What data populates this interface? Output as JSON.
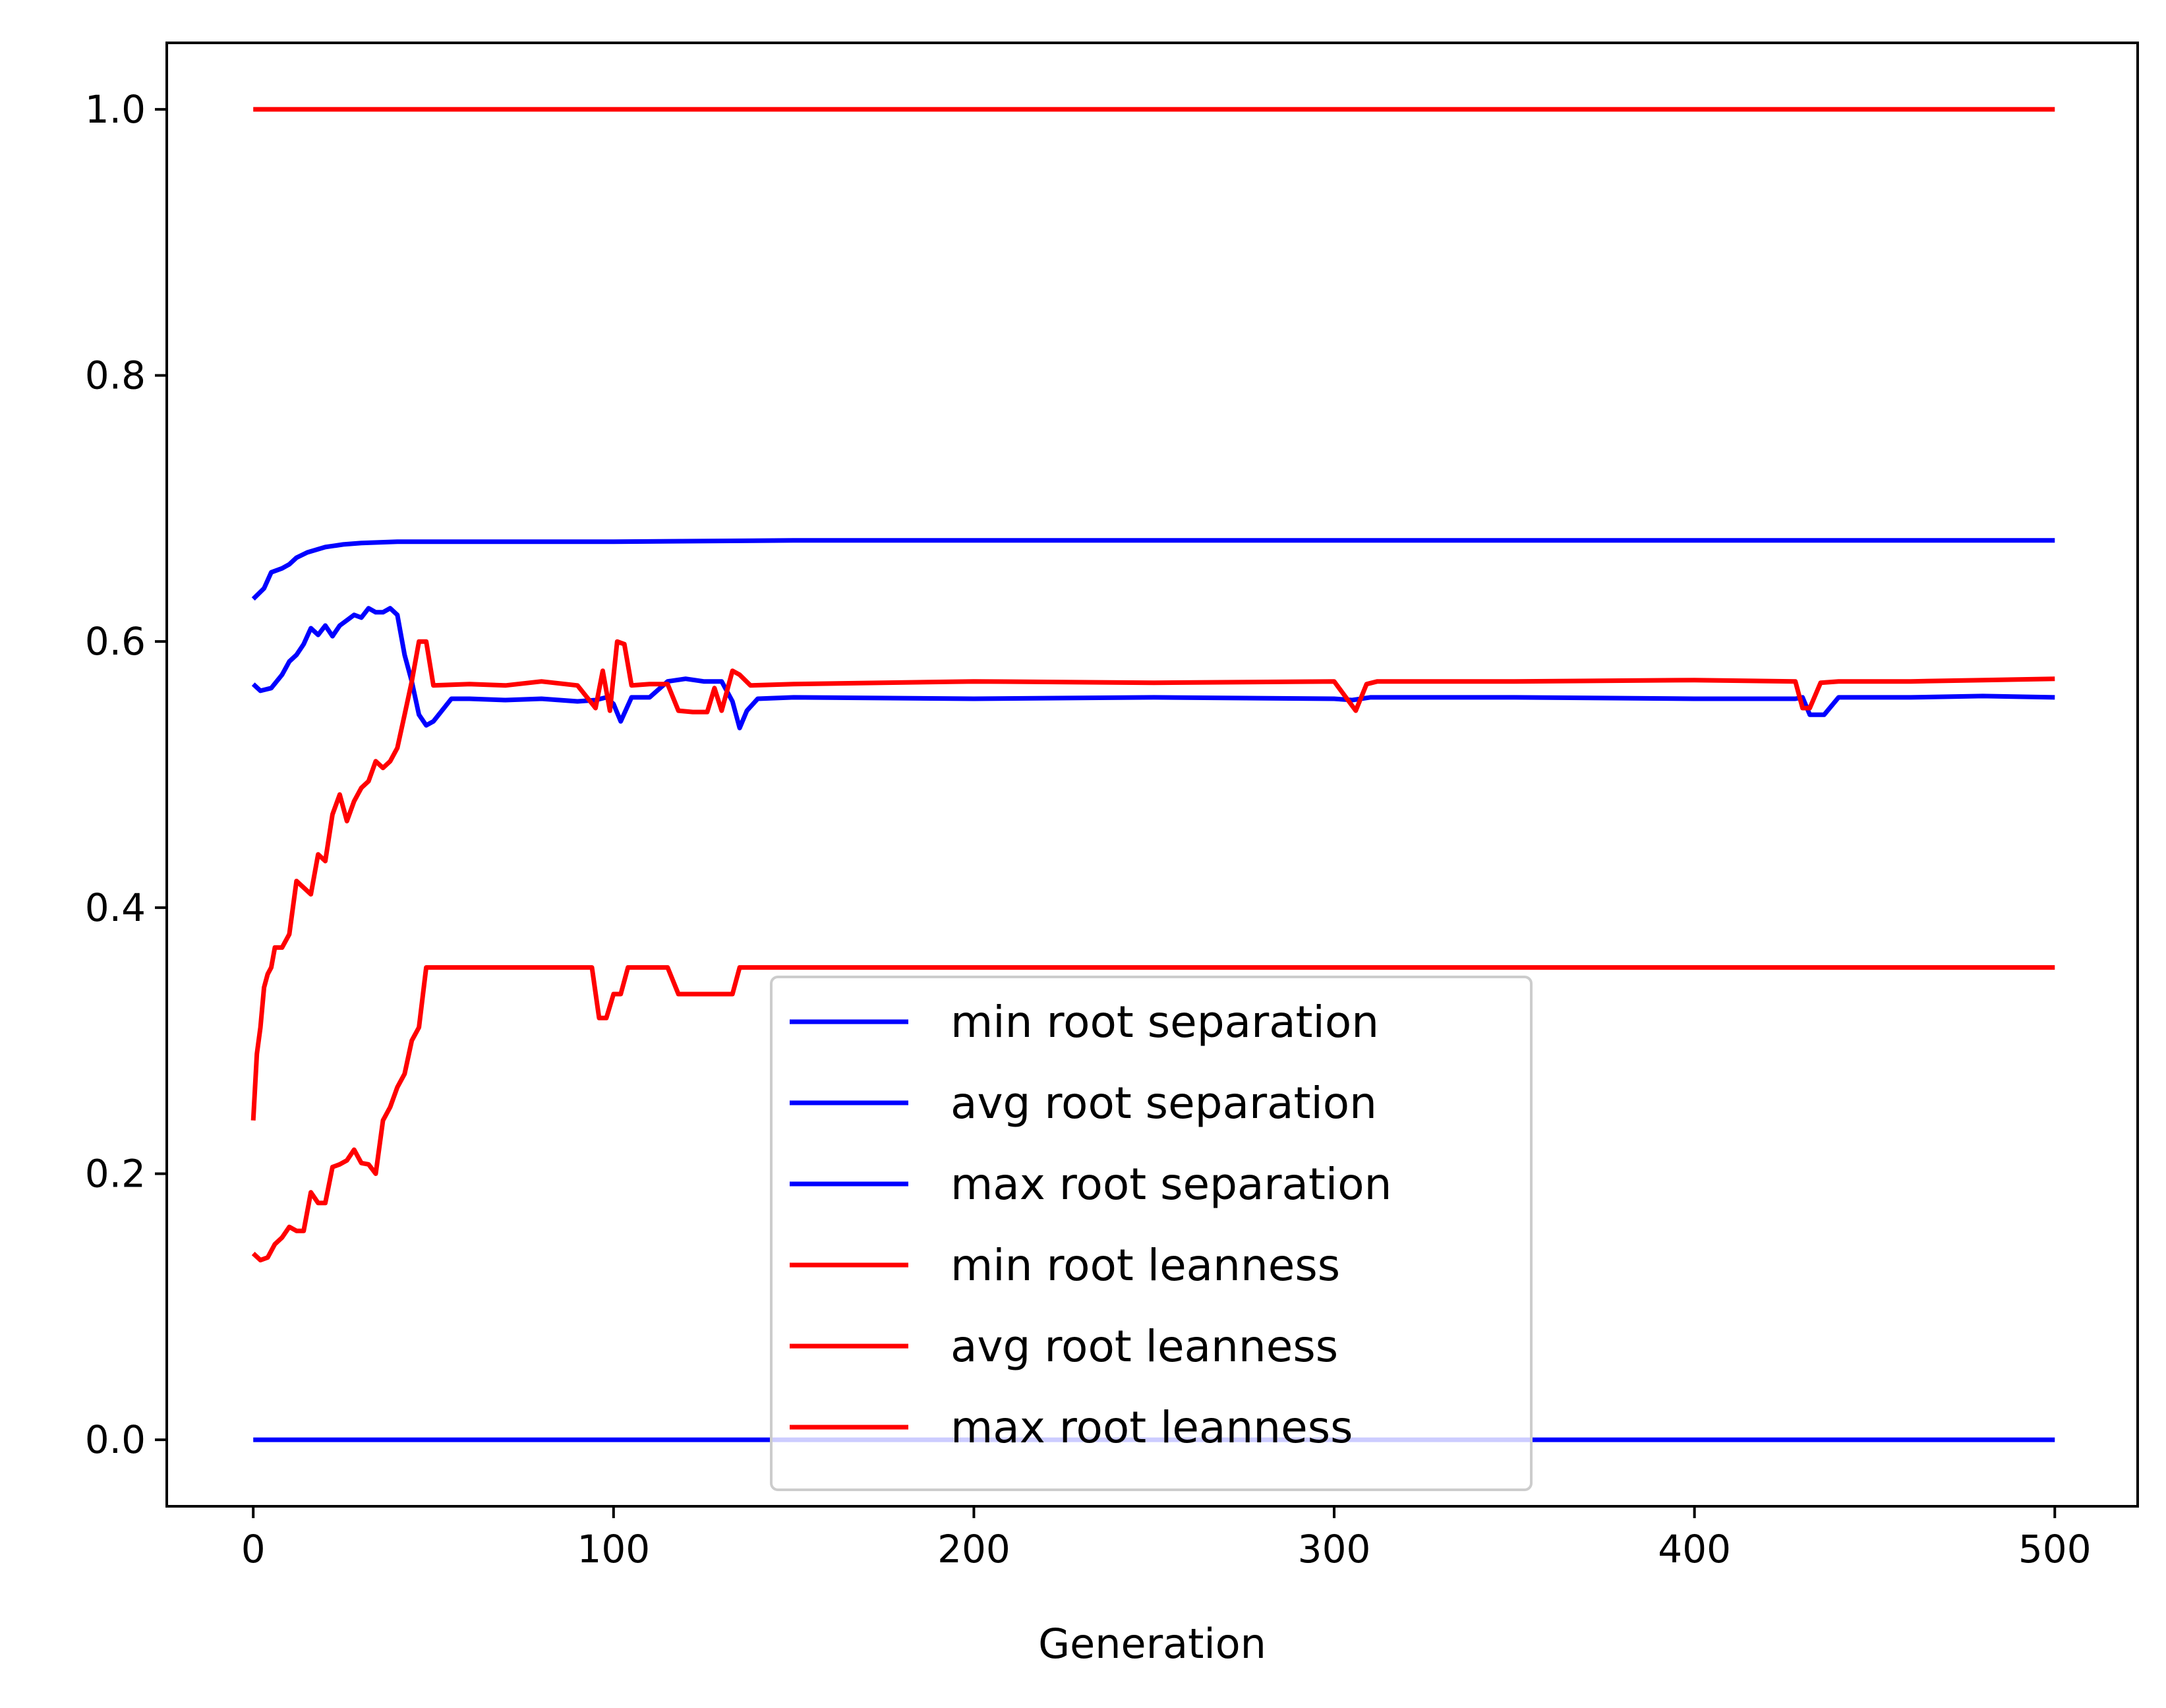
{
  "chart_data": {
    "type": "line",
    "title": "",
    "xlabel": "Generation",
    "ylabel": "",
    "xlim": [
      -24,
      523
    ],
    "ylim": [
      -0.05,
      1.05
    ],
    "xticks": [
      "0",
      "100",
      "200",
      "300",
      "400",
      "500"
    ],
    "yticks": [
      "0.0",
      "0.2",
      "0.4",
      "0.6",
      "0.8",
      "1.0"
    ],
    "grid": false,
    "legend_position": "lower-center",
    "series": [
      {
        "name": "min root separation",
        "color": "#0000ff",
        "x": [
          0,
          500
        ],
        "y": [
          0.0,
          0.0
        ]
      },
      {
        "name": "avg root separation",
        "color": "#0000ff",
        "x": [
          0,
          2,
          5,
          8,
          10,
          12,
          14,
          16,
          18,
          20,
          22,
          24,
          26,
          28,
          30,
          32,
          34,
          36,
          38,
          40,
          42,
          44,
          46,
          48,
          50,
          55,
          60,
          70,
          80,
          90,
          95,
          98,
          100,
          102,
          105,
          110,
          115,
          120,
          125,
          130,
          133,
          135,
          137,
          140,
          150,
          200,
          250,
          300,
          305,
          310,
          350,
          400,
          428,
          430,
          432,
          436,
          440,
          460,
          480,
          500
        ],
        "y": [
          0.568,
          0.563,
          0.565,
          0.575,
          0.585,
          0.59,
          0.598,
          0.61,
          0.605,
          0.612,
          0.604,
          0.612,
          0.616,
          0.62,
          0.618,
          0.625,
          0.622,
          0.622,
          0.625,
          0.62,
          0.59,
          0.57,
          0.545,
          0.537,
          0.54,
          0.557,
          0.557,
          0.556,
          0.557,
          0.555,
          0.556,
          0.558,
          0.553,
          0.54,
          0.558,
          0.558,
          0.57,
          0.572,
          0.57,
          0.57,
          0.555,
          0.535,
          0.548,
          0.557,
          0.558,
          0.557,
          0.558,
          0.557,
          0.556,
          0.558,
          0.558,
          0.557,
          0.557,
          0.558,
          0.545,
          0.545,
          0.558,
          0.558,
          0.559,
          0.558
        ]
      },
      {
        "name": "max root separation",
        "color": "#0000ff",
        "x": [
          0,
          3,
          5,
          8,
          10,
          12,
          15,
          20,
          25,
          30,
          40,
          60,
          100,
          150,
          200,
          300,
          400,
          500
        ],
        "y": [
          0.632,
          0.64,
          0.652,
          0.655,
          0.658,
          0.663,
          0.667,
          0.671,
          0.673,
          0.674,
          0.675,
          0.675,
          0.675,
          0.676,
          0.676,
          0.676,
          0.676,
          0.676
        ]
      },
      {
        "name": "min root leanness",
        "color": "#ff0000",
        "x": [
          0,
          2,
          4,
          6,
          8,
          10,
          12,
          14,
          16,
          18,
          20,
          22,
          24,
          26,
          28,
          30,
          32,
          34,
          36,
          38,
          40,
          42,
          44,
          46,
          48,
          94,
          96,
          98,
          100,
          102,
          104,
          110,
          115,
          118,
          122,
          128,
          133,
          135,
          140,
          500
        ],
        "y": [
          0.14,
          0.135,
          0.137,
          0.147,
          0.152,
          0.16,
          0.157,
          0.157,
          0.186,
          0.178,
          0.178,
          0.205,
          0.207,
          0.21,
          0.218,
          0.208,
          0.207,
          0.2,
          0.24,
          0.25,
          0.265,
          0.275,
          0.3,
          0.31,
          0.355,
          0.355,
          0.317,
          0.317,
          0.335,
          0.335,
          0.355,
          0.355,
          0.355,
          0.335,
          0.335,
          0.335,
          0.335,
          0.355,
          0.355,
          0.355
        ]
      },
      {
        "name": "avg root leanness",
        "color": "#ff0000",
        "x": [
          0,
          1,
          2,
          3,
          4,
          5,
          6,
          8,
          10,
          12,
          14,
          16,
          18,
          20,
          22,
          24,
          26,
          28,
          30,
          32,
          34,
          36,
          38,
          40,
          42,
          44,
          46,
          48,
          50,
          60,
          70,
          80,
          90,
          95,
          97,
          99,
          101,
          103,
          105,
          110,
          115,
          118,
          122,
          126,
          128,
          130,
          133,
          135,
          138,
          150,
          200,
          250,
          300,
          306,
          309,
          312,
          350,
          400,
          428,
          430,
          432,
          435,
          440,
          460,
          480,
          500
        ],
        "y": [
          0.24,
          0.29,
          0.31,
          0.34,
          0.35,
          0.355,
          0.37,
          0.37,
          0.38,
          0.42,
          0.415,
          0.41,
          0.44,
          0.435,
          0.47,
          0.485,
          0.465,
          0.48,
          0.49,
          0.495,
          0.51,
          0.505,
          0.51,
          0.52,
          0.545,
          0.57,
          0.6,
          0.6,
          0.567,
          0.568,
          0.567,
          0.57,
          0.567,
          0.55,
          0.578,
          0.548,
          0.6,
          0.598,
          0.567,
          0.568,
          0.568,
          0.548,
          0.547,
          0.547,
          0.565,
          0.548,
          0.578,
          0.575,
          0.567,
          0.568,
          0.57,
          0.569,
          0.57,
          0.548,
          0.568,
          0.57,
          0.57,
          0.571,
          0.57,
          0.55,
          0.55,
          0.569,
          0.57,
          0.57,
          0.571,
          0.572
        ]
      },
      {
        "name": "max root leanness",
        "color": "#ff0000",
        "x": [
          0,
          500
        ],
        "y": [
          1.0,
          1.0
        ]
      }
    ]
  }
}
